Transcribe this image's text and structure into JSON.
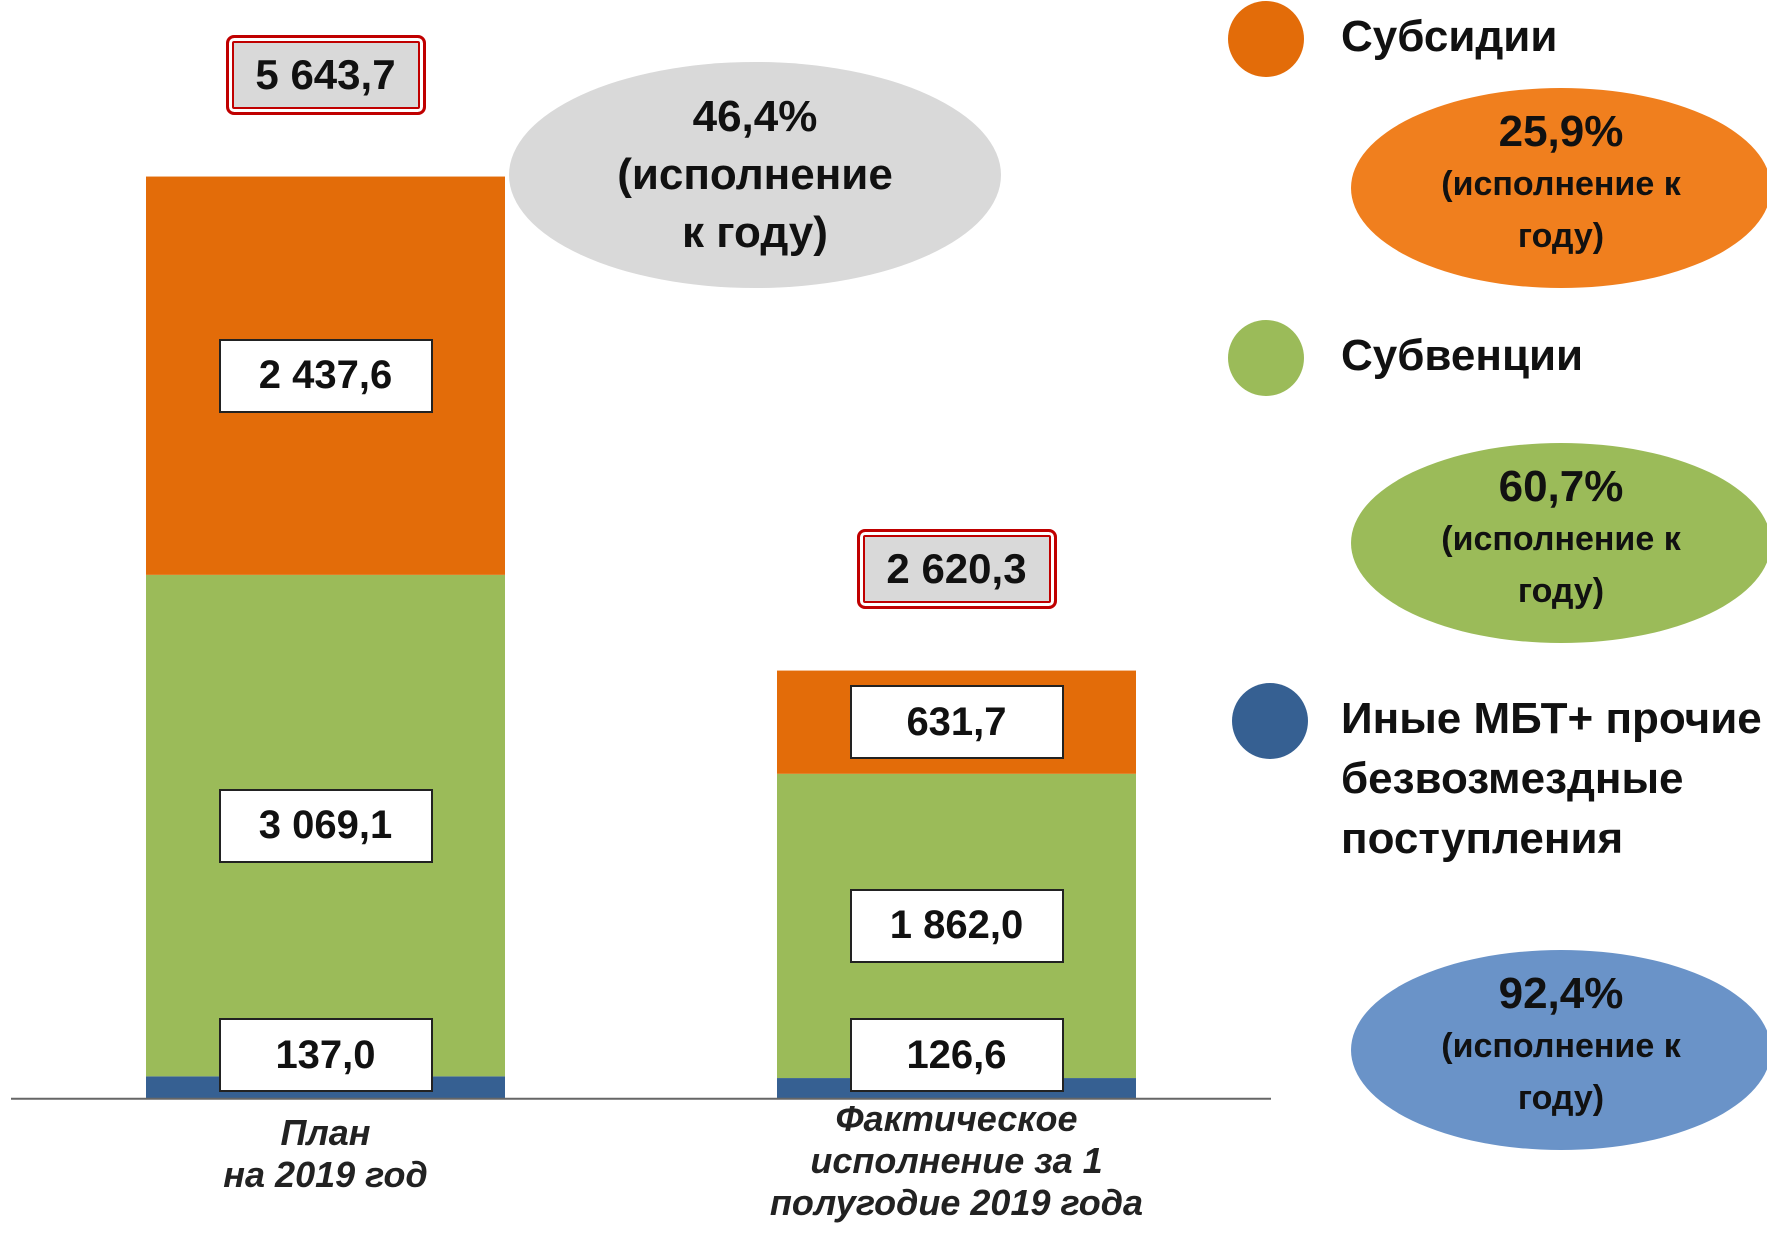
{
  "chart_data": {
    "type": "stacked_bar",
    "categories": [
      "План\nна 2019 год",
      "Фактическое\nисполнение за 1\nполугодие 2019 года"
    ],
    "ylim": [
      0,
      6000
    ],
    "series": [
      {
        "name": "Иные МБТ+ прочие\nбезвозмездные\nпоступления",
        "color": "#366092",
        "bubble_color": "#6a93c8",
        "values": [
          137.0,
          126.6
        ],
        "value_labels": [
          "137,0",
          "126,6"
        ],
        "execution": 92.4,
        "execution_label": "92,4%"
      },
      {
        "name": "Субвенции",
        "color": "#9bbb59",
        "bubble_color": "#9bbb59",
        "values": [
          3069.1,
          1862.0
        ],
        "value_labels": [
          "3 069,1",
          "1 862,0"
        ],
        "execution": 60.7,
        "execution_label": "60,7%"
      },
      {
        "name": "Субсидии",
        "color": "#e36c09",
        "bubble_color": "#f07f1e",
        "values": [
          2437.6,
          631.7
        ],
        "value_labels": [
          "2 437,6",
          "631,7"
        ],
        "execution": 25.9,
        "execution_label": "25,9%"
      }
    ],
    "totals": [
      5643.7,
      2620.3
    ],
    "total_labels": [
      "5 643,7",
      "2 620,3"
    ],
    "execution": 46.4,
    "execution_label": "46,4%",
    "execution_note": "(исполнение к году)"
  }
}
